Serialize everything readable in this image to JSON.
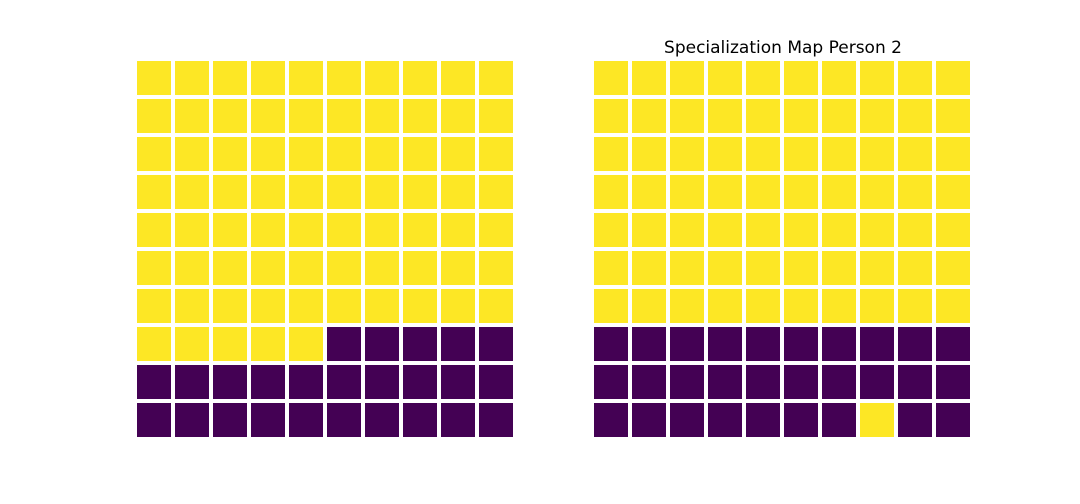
{
  "colors": {
    "yellow": "#fde725",
    "purple": "#440154",
    "background": "#ffffff"
  },
  "chart_data": [
    {
      "type": "heatmap",
      "title": "",
      "rows": 10,
      "cols": 10,
      "legend": [
        "0 = purple",
        "1 = yellow"
      ],
      "values": [
        [
          1,
          1,
          1,
          1,
          1,
          1,
          1,
          1,
          1,
          1
        ],
        [
          1,
          1,
          1,
          1,
          1,
          1,
          1,
          1,
          1,
          1
        ],
        [
          1,
          1,
          1,
          1,
          1,
          1,
          1,
          1,
          1,
          1
        ],
        [
          1,
          1,
          1,
          1,
          1,
          1,
          1,
          1,
          1,
          1
        ],
        [
          1,
          1,
          1,
          1,
          1,
          1,
          1,
          1,
          1,
          1
        ],
        [
          1,
          1,
          1,
          1,
          1,
          1,
          1,
          1,
          1,
          1
        ],
        [
          1,
          1,
          1,
          1,
          1,
          1,
          1,
          1,
          1,
          1
        ],
        [
          1,
          1,
          1,
          1,
          1,
          0,
          0,
          0,
          0,
          0
        ],
        [
          0,
          0,
          0,
          0,
          0,
          0,
          0,
          0,
          0,
          0
        ],
        [
          0,
          0,
          0,
          0,
          0,
          0,
          0,
          0,
          0,
          0
        ]
      ]
    },
    {
      "type": "heatmap",
      "title": "Specialization Map Person 2",
      "rows": 10,
      "cols": 10,
      "legend": [
        "0 = purple",
        "1 = yellow"
      ],
      "values": [
        [
          1,
          1,
          1,
          1,
          1,
          1,
          1,
          1,
          1,
          1
        ],
        [
          1,
          1,
          1,
          1,
          1,
          1,
          1,
          1,
          1,
          1
        ],
        [
          1,
          1,
          1,
          1,
          1,
          1,
          1,
          1,
          1,
          1
        ],
        [
          1,
          1,
          1,
          1,
          1,
          1,
          1,
          1,
          1,
          1
        ],
        [
          1,
          1,
          1,
          1,
          1,
          1,
          1,
          1,
          1,
          1
        ],
        [
          1,
          1,
          1,
          1,
          1,
          1,
          1,
          1,
          1,
          1
        ],
        [
          1,
          1,
          1,
          1,
          1,
          1,
          1,
          1,
          1,
          1
        ],
        [
          0,
          0,
          0,
          0,
          0,
          0,
          0,
          0,
          0,
          0
        ],
        [
          0,
          0,
          0,
          0,
          0,
          0,
          0,
          0,
          0,
          0
        ],
        [
          0,
          0,
          0,
          0,
          0,
          0,
          0,
          1,
          0,
          0
        ]
      ]
    }
  ]
}
